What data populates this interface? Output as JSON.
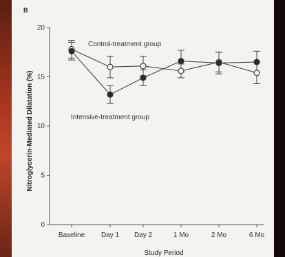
{
  "panel_label": "B",
  "chart_data": {
    "type": "line",
    "title": "",
    "xlabel": "Study Period",
    "ylabel": "Nitroglycerin-Mediated Dilatation (%)",
    "categories": [
      "Baseline",
      "Day 1",
      "Day 2",
      "1 Mo",
      "2 Mo",
      "6 Mo"
    ],
    "ylim": [
      0,
      20
    ],
    "yticks": [
      0,
      5,
      10,
      15,
      20
    ],
    "grid": false,
    "series": [
      {
        "name": "Control-treatment group",
        "marker": "open-circle",
        "values": [
          17.8,
          16.0,
          16.1,
          15.6,
          16.5,
          15.4
        ],
        "err": [
          0.9,
          1.1,
          1.0,
          0.7,
          1.0,
          1.1
        ]
      },
      {
        "name": "Intensive-treatment group",
        "marker": "filled-circle",
        "values": [
          17.6,
          13.2,
          14.9,
          16.6,
          16.4,
          16.5
        ],
        "err": [
          0.9,
          0.9,
          0.8,
          1.1,
          1.1,
          1.1
        ]
      }
    ]
  }
}
